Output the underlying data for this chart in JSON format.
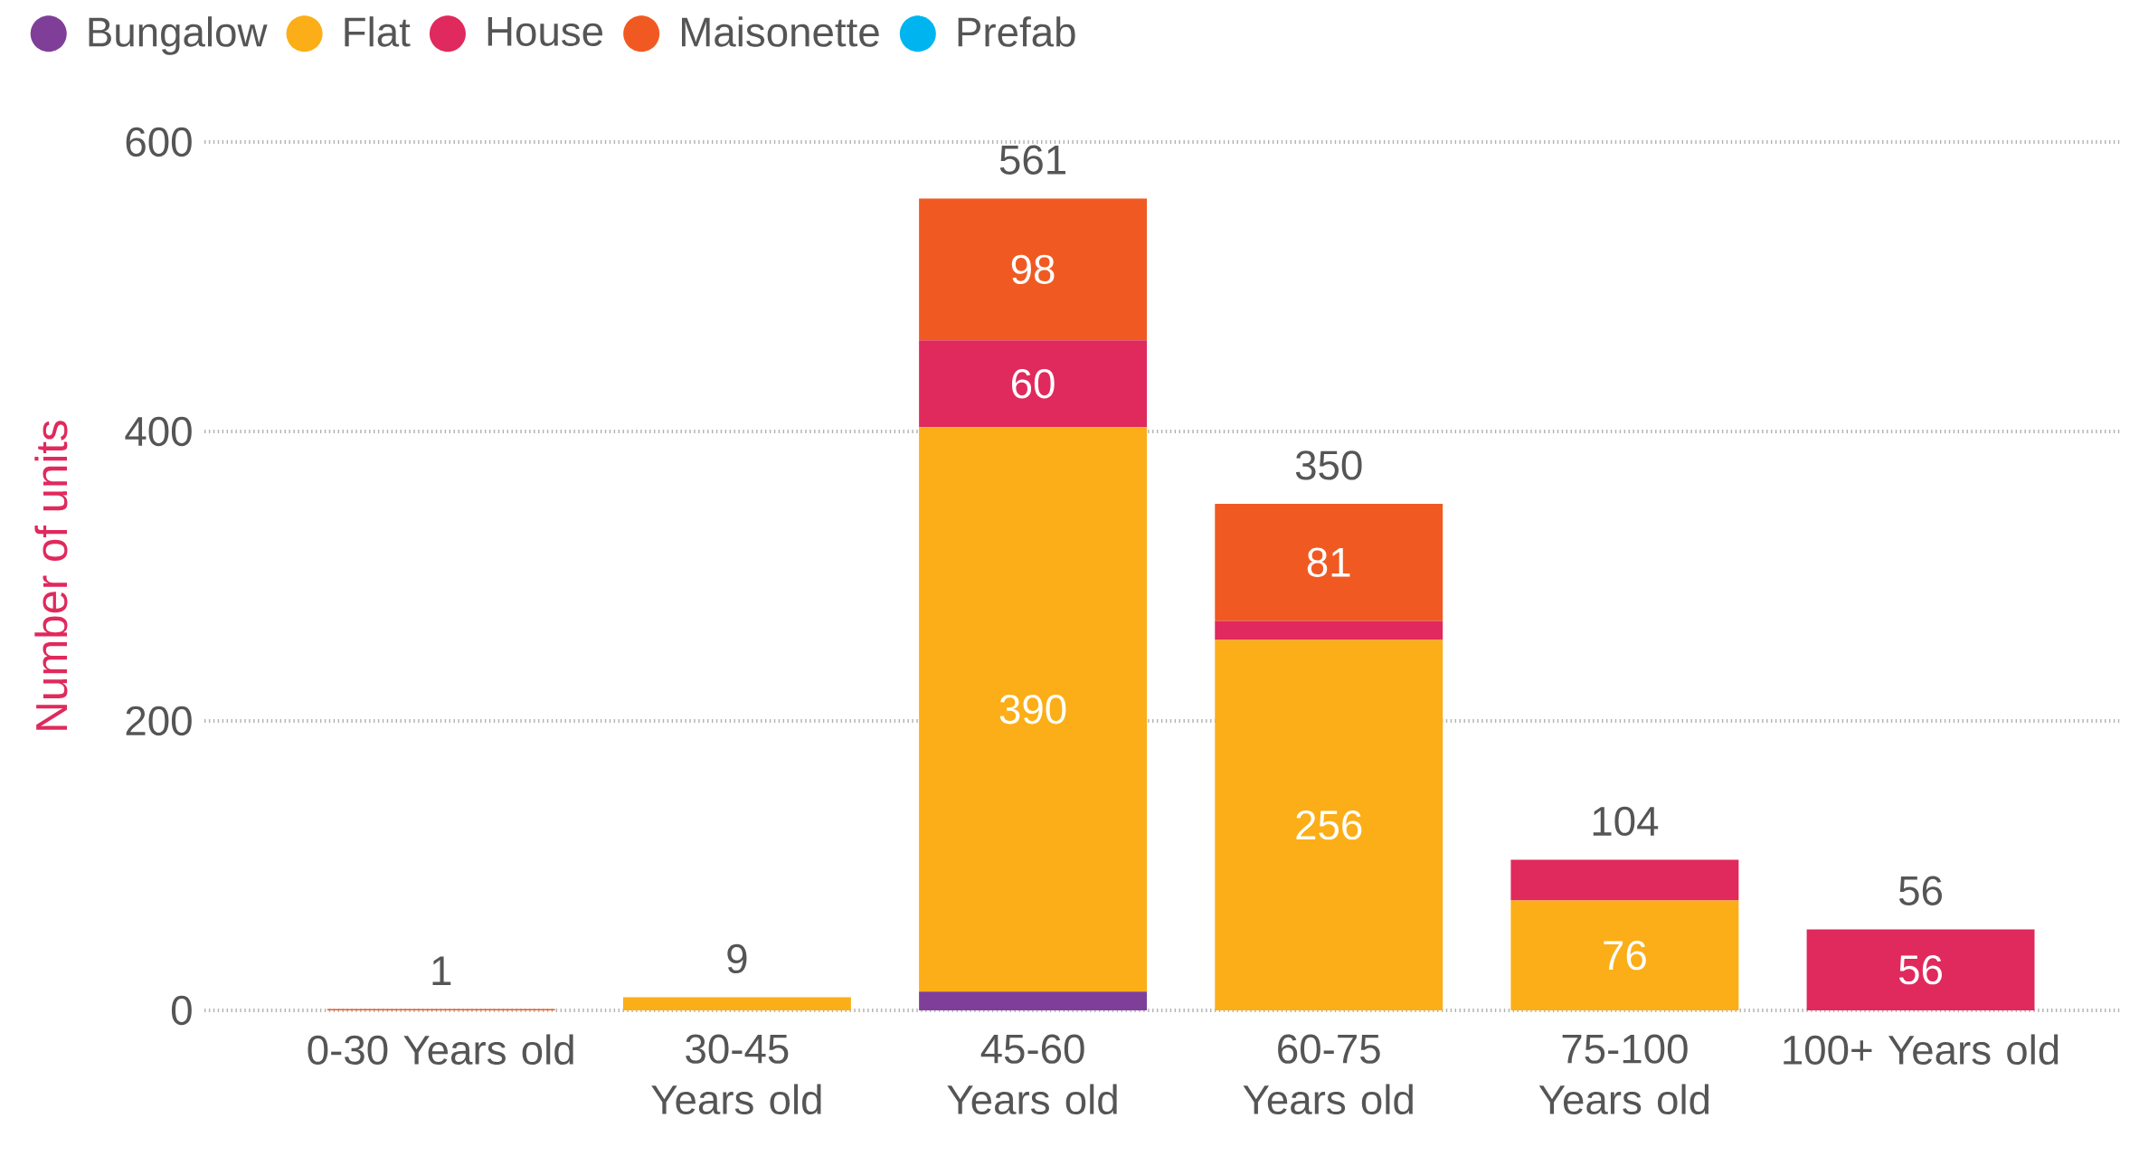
{
  "chart_data": {
    "type": "bar",
    "stacked": true,
    "ylabel": "Number of units",
    "categories": [
      "0-30 Years old",
      "30-45 Years old",
      "45-60 Years old",
      "60-75 Years old",
      "75-100 Years old",
      "100+ Years old"
    ],
    "series": [
      {
        "name": "Bungalow",
        "color": "#7f3f98",
        "values": [
          null,
          null,
          13,
          null,
          null,
          null
        ],
        "value_labels": [
          null,
          null,
          null,
          null,
          null,
          null
        ]
      },
      {
        "name": "Flat",
        "color": "#fbae17",
        "values": [
          null,
          9,
          390,
          256,
          76,
          null
        ],
        "value_labels": [
          null,
          null,
          "390",
          "256",
          "76",
          null
        ]
      },
      {
        "name": "House",
        "color": "#e0295c",
        "values": [
          null,
          null,
          60,
          13,
          28,
          56
        ],
        "value_labels": [
          null,
          null,
          "60",
          null,
          null,
          "56"
        ]
      },
      {
        "name": "Maisonette",
        "color": "#f05a22",
        "values": [
          1,
          null,
          98,
          81,
          null,
          null
        ],
        "value_labels": [
          null,
          null,
          "98",
          "81",
          null,
          null
        ]
      },
      {
        "name": "Prefab",
        "color": "#00b5ef",
        "values": [
          null,
          null,
          null,
          null,
          null,
          null
        ],
        "value_labels": [
          null,
          null,
          null,
          null,
          null,
          null
        ]
      }
    ],
    "totals": [
      "1",
      "9",
      "561",
      "350",
      "104",
      "56"
    ],
    "ylim": [
      0,
      600
    ],
    "yticks": [
      0,
      200,
      400,
      600
    ],
    "grid": "y",
    "legend": "top left"
  }
}
